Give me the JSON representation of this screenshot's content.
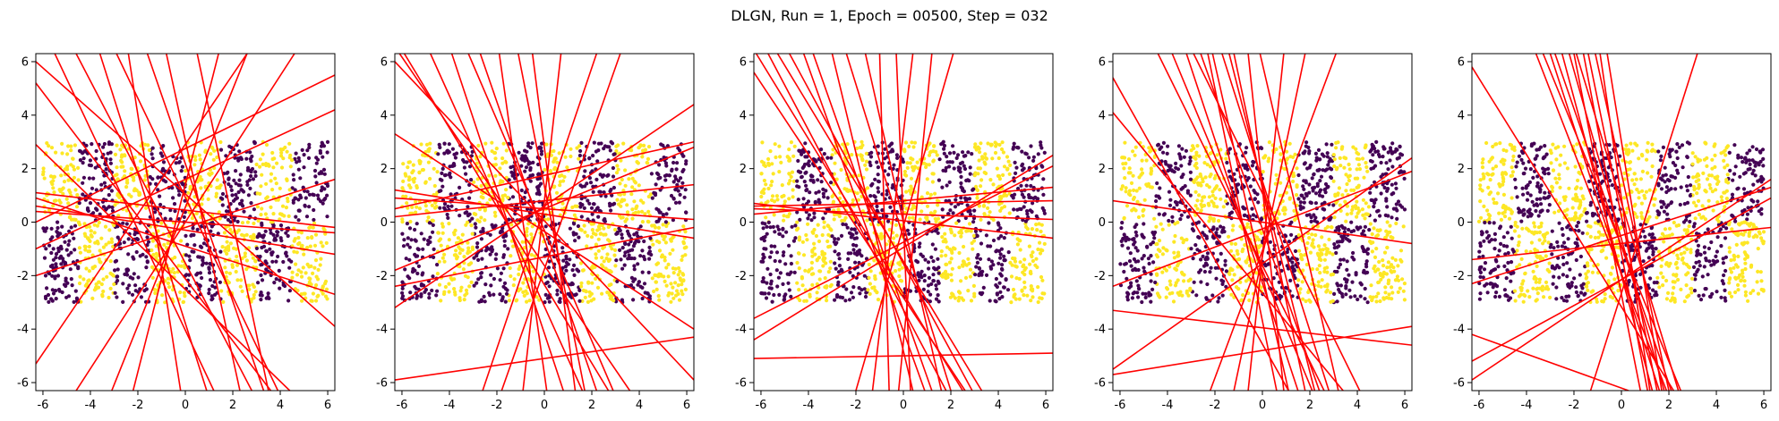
{
  "title": "DLGN, Run = 1, Epoch = 00500, Step = 032",
  "colors": {
    "class_a": "#440154",
    "class_b": "#fde725",
    "line": "#ff0000",
    "axes": "#000000"
  },
  "chart_data": [
    {
      "type": "scatter",
      "xlim": [
        -6.3,
        6.3
      ],
      "ylim": [
        -6.3,
        6.3
      ],
      "xticks": [
        "-6",
        "-4",
        "-2",
        "0",
        "2",
        "4",
        "6"
      ],
      "yticks": [
        "-6",
        "-4",
        "-2",
        "0",
        "2",
        "4",
        "6"
      ],
      "grid": false,
      "lines": [
        [
          -6.3,
          6.0,
          6.3,
          -3.9
        ],
        [
          -6.3,
          5.2,
          3.6,
          -6.3
        ],
        [
          -6.3,
          -5.3,
          2.6,
          6.3
        ],
        [
          -6.3,
          0.9,
          6.3,
          -2.7
        ],
        [
          -6.3,
          0.4,
          6.3,
          -0.4
        ],
        [
          -6.3,
          1.1,
          6.3,
          -0.2
        ],
        [
          -6.3,
          -1.0,
          6.3,
          4.2
        ],
        [
          -6.3,
          0.0,
          6.3,
          5.5
        ],
        [
          -4.6,
          6.3,
          2.8,
          -6.3
        ],
        [
          -3.6,
          6.3,
          0.9,
          -6.3
        ],
        [
          -2.4,
          6.3,
          -0.2,
          -6.3
        ],
        [
          -0.8,
          6.3,
          2.3,
          -6.3
        ],
        [
          1.4,
          6.3,
          -2.2,
          -6.3
        ],
        [
          2.6,
          6.3,
          -3.1,
          -6.3
        ],
        [
          -1.6,
          6.3,
          3.3,
          -6.3
        ],
        [
          0.5,
          6.3,
          3.5,
          -6.3
        ],
        [
          -5.5,
          6.3,
          1.2,
          -6.3
        ],
        [
          4.6,
          6.3,
          -4.6,
          -6.3
        ],
        [
          -6.3,
          -2.0,
          6.3,
          1.6
        ],
        [
          -6.3,
          2.9,
          4.4,
          -6.3
        ],
        [
          -2.9,
          6.3,
          3.9,
          -6.3
        ],
        [
          -6.3,
          0.6,
          6.3,
          -1.2
        ]
      ]
    },
    {
      "type": "scatter",
      "xlim": [
        -6.3,
        6.3
      ],
      "ylim": [
        -6.3,
        6.3
      ],
      "xticks": [
        "-6",
        "-4",
        "-2",
        "0",
        "2",
        "4",
        "6"
      ],
      "yticks": [
        "-6",
        "-4",
        "-2",
        "0",
        "2",
        "4",
        "6"
      ],
      "grid": false,
      "lines": [
        [
          -6.3,
          -5.9,
          6.3,
          -4.3
        ],
        [
          -6.3,
          -3.2,
          6.3,
          4.4
        ],
        [
          -6.3,
          0.5,
          6.3,
          3.0
        ],
        [
          -6.3,
          1.2,
          6.3,
          -0.6
        ],
        [
          -6.3,
          0.9,
          6.3,
          0.1
        ],
        [
          -6.3,
          -1.8,
          6.3,
          2.8
        ],
        [
          -6.3,
          -2.4,
          6.3,
          -0.2
        ],
        [
          -6.3,
          3.3,
          6.3,
          -4.0
        ],
        [
          -5.9,
          6.3,
          2.7,
          -6.3
        ],
        [
          -4.8,
          6.3,
          1.6,
          -6.3
        ],
        [
          -3.9,
          6.3,
          0.8,
          -6.3
        ],
        [
          -2.7,
          6.3,
          2.2,
          -6.3
        ],
        [
          -1.9,
          6.3,
          0.1,
          -6.3
        ],
        [
          -0.5,
          6.3,
          1.3,
          -6.3
        ],
        [
          0.7,
          6.3,
          -0.9,
          -6.3
        ],
        [
          2.2,
          6.3,
          -2.6,
          -6.3
        ],
        [
          3.2,
          6.3,
          -1.8,
          -6.3
        ],
        [
          -6.1,
          6.3,
          3.6,
          -6.3
        ],
        [
          -6.3,
          6.0,
          6.3,
          -5.9
        ],
        [
          -3.2,
          6.3,
          2.9,
          -6.3
        ],
        [
          -1.1,
          6.3,
          1.7,
          -6.3
        ],
        [
          -6.3,
          0.2,
          6.3,
          1.4
        ]
      ]
    },
    {
      "type": "scatter",
      "xlim": [
        -6.3,
        6.3
      ],
      "ylim": [
        -6.3,
        6.3
      ],
      "xticks": [
        "-6",
        "-4",
        "-2",
        "0",
        "2",
        "4",
        "6"
      ],
      "yticks": [
        "-6",
        "-4",
        "-2",
        "0",
        "2",
        "4",
        "6"
      ],
      "grid": false,
      "lines": [
        [
          -6.3,
          -5.1,
          6.3,
          -4.9
        ],
        [
          -6.3,
          -4.4,
          6.3,
          2.5
        ],
        [
          -6.3,
          0.3,
          6.3,
          1.3
        ],
        [
          -6.3,
          0.7,
          6.3,
          -0.6
        ],
        [
          -6.3,
          0.6,
          6.3,
          0.8
        ],
        [
          -6.3,
          -3.6,
          6.3,
          2.1
        ],
        [
          -6.2,
          6.3,
          2.5,
          -6.3
        ],
        [
          -5.7,
          6.3,
          1.8,
          -6.3
        ],
        [
          -4.8,
          6.3,
          2.9,
          -6.3
        ],
        [
          -3.8,
          6.3,
          1.2,
          -6.3
        ],
        [
          -3.0,
          6.3,
          0.4,
          -6.3
        ],
        [
          -1.6,
          6.3,
          1.6,
          -6.3
        ],
        [
          -1.0,
          6.3,
          -0.6,
          -6.3
        ],
        [
          0.4,
          6.3,
          -1.3,
          -6.3
        ],
        [
          1.2,
          6.3,
          -0.2,
          -6.3
        ],
        [
          2.1,
          6.3,
          -2.0,
          -6.3
        ],
        [
          -5.3,
          6.3,
          3.3,
          -6.3
        ],
        [
          -2.4,
          6.3,
          2.0,
          -6.3
        ],
        [
          -6.3,
          5.6,
          2.6,
          -6.3
        ],
        [
          -4.2,
          6.3,
          0.9,
          -6.3
        ],
        [
          -0.3,
          6.3,
          0.3,
          -6.3
        ],
        [
          -6.3,
          0.5,
          6.3,
          0.1
        ]
      ]
    },
    {
      "type": "scatter",
      "xlim": [
        -6.3,
        6.3
      ],
      "ylim": [
        -6.3,
        6.3
      ],
      "xticks": [
        "-6",
        "-4",
        "-2",
        "0",
        "2",
        "4",
        "6"
      ],
      "yticks": [
        "-6",
        "-4",
        "-2",
        "0",
        "2",
        "4",
        "6"
      ],
      "grid": false,
      "lines": [
        [
          -6.3,
          -5.7,
          6.3,
          -3.9
        ],
        [
          -6.3,
          -3.3,
          6.3,
          -4.6
        ],
        [
          -6.3,
          5.4,
          1.1,
          -6.3
        ],
        [
          -6.3,
          4.1,
          3.4,
          -6.3
        ],
        [
          -3.8,
          6.3,
          2.1,
          -6.3
        ],
        [
          -3.2,
          6.3,
          1.5,
          -6.3
        ],
        [
          -2.6,
          6.3,
          2.4,
          -6.3
        ],
        [
          -2.1,
          6.3,
          1.1,
          -6.3
        ],
        [
          -1.7,
          6.3,
          2.8,
          -6.3
        ],
        [
          -1.2,
          6.3,
          1.8,
          -6.3
        ],
        [
          -0.6,
          6.3,
          0.9,
          -6.3
        ],
        [
          -0.1,
          6.3,
          3.2,
          -6.3
        ],
        [
          0.9,
          6.3,
          -0.6,
          -6.3
        ],
        [
          1.8,
          6.3,
          -1.2,
          -6.3
        ],
        [
          3.1,
          6.3,
          -2.2,
          -6.3
        ],
        [
          -2.9,
          6.3,
          4.1,
          -6.3
        ],
        [
          -6.3,
          -2.4,
          6.3,
          1.9
        ],
        [
          -6.3,
          -5.5,
          6.3,
          2.4
        ],
        [
          -4.4,
          6.3,
          2.6,
          -6.3
        ],
        [
          -2.3,
          6.3,
          0.6,
          -6.3
        ],
        [
          -6.3,
          0.8,
          6.3,
          -0.8
        ],
        [
          -1.4,
          6.3,
          2.2,
          -6.3
        ]
      ]
    },
    {
      "type": "scatter",
      "xlim": [
        -6.3,
        6.3
      ],
      "ylim": [
        -6.3,
        6.3
      ],
      "xticks": [
        "-6",
        "-4",
        "-2",
        "0",
        "2",
        "4",
        "6"
      ],
      "yticks": [
        "-6",
        "-4",
        "-2",
        "0",
        "2",
        "4",
        "6"
      ],
      "grid": false,
      "lines": [
        [
          -6.3,
          5.8,
          2.2,
          -6.3
        ],
        [
          -6.3,
          -4.2,
          0.3,
          -6.3
        ],
        [
          -6.3,
          -1.4,
          6.3,
          -0.2
        ],
        [
          -6.3,
          -5.2,
          6.3,
          0.9
        ],
        [
          -3.6,
          6.3,
          1.9,
          -6.3
        ],
        [
          -3.0,
          6.3,
          1.6,
          -6.3
        ],
        [
          -2.8,
          6.3,
          2.1,
          -6.3
        ],
        [
          -2.5,
          6.3,
          1.3,
          -6.3
        ],
        [
          -2.2,
          6.3,
          1.8,
          -6.3
        ],
        [
          -1.9,
          6.3,
          2.4,
          -6.3
        ],
        [
          -1.6,
          6.3,
          1.1,
          -6.3
        ],
        [
          -1.4,
          6.3,
          1.5,
          -6.3
        ],
        [
          -1.1,
          6.3,
          2.0,
          -6.3
        ],
        [
          -0.9,
          6.3,
          1.2,
          -6.3
        ],
        [
          -0.6,
          6.3,
          1.7,
          -6.3
        ],
        [
          3.2,
          6.3,
          -1.3,
          -6.3
        ],
        [
          -6.3,
          -2.3,
          6.3,
          1.3
        ],
        [
          -3.3,
          6.3,
          2.5,
          -6.3
        ],
        [
          -2.0,
          6.3,
          0.8,
          -6.3
        ],
        [
          -6.3,
          -5.9,
          6.3,
          1.6
        ]
      ]
    }
  ]
}
